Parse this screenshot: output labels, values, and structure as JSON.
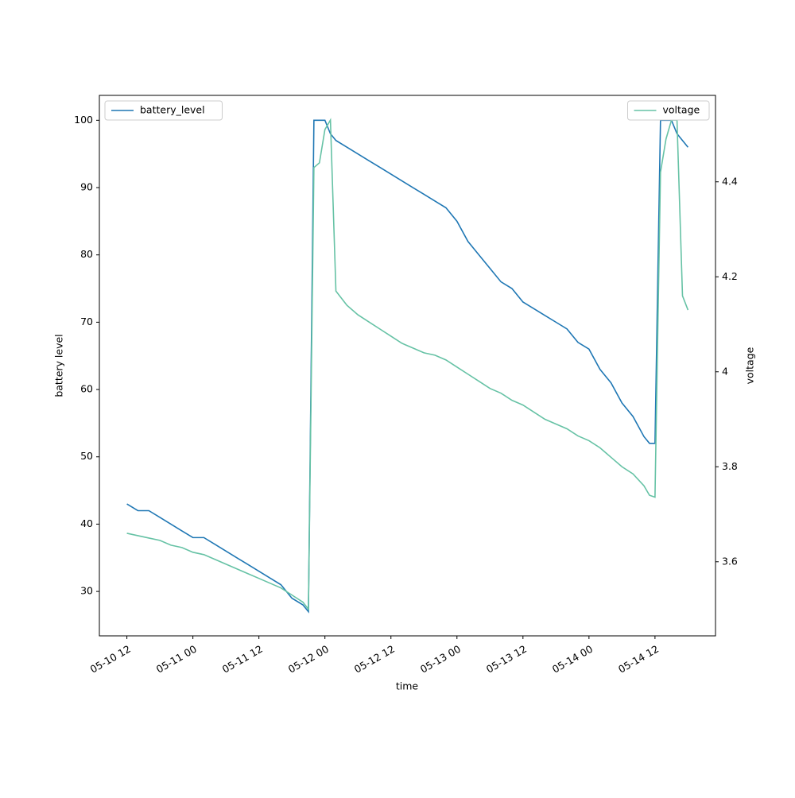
{
  "chart_data": {
    "type": "line",
    "x_label": "time",
    "y_label": "battery level",
    "y2_label": "voltage",
    "x": [
      "05-10 12",
      "05-10 14",
      "05-10 16",
      "05-10 18",
      "05-10 20",
      "05-10 22",
      "05-11 00",
      "05-11 02",
      "05-11 04",
      "05-11 06",
      "05-11 08",
      "05-11 10",
      "05-11 12",
      "05-11 14",
      "05-11 16",
      "05-11 18",
      "05-11 20",
      "05-11 21",
      "05-11 22",
      "05-11 23",
      "05-12 00",
      "05-12 01",
      "05-12 02",
      "05-12 04",
      "05-12 06",
      "05-12 08",
      "05-12 10",
      "05-12 12",
      "05-12 14",
      "05-12 16",
      "05-12 18",
      "05-12 20",
      "05-12 22",
      "05-13 00",
      "05-13 02",
      "05-13 04",
      "05-13 06",
      "05-13 08",
      "05-13 10",
      "05-13 12",
      "05-13 14",
      "05-13 16",
      "05-13 18",
      "05-13 20",
      "05-13 22",
      "05-14 00",
      "05-14 02",
      "05-14 04",
      "05-14 06",
      "05-14 08",
      "05-14 10",
      "05-14 11",
      "05-14 12",
      "05-14 13",
      "05-14 14",
      "05-14 15",
      "05-14 16",
      "05-14 17",
      "05-14 18"
    ],
    "series": [
      {
        "name": "battery_level",
        "color": "#1f77b4",
        "legend": "upper left",
        "values": [
          43,
          42,
          42,
          41,
          40,
          39,
          38,
          38,
          37,
          36,
          35,
          34,
          33,
          32,
          31,
          29,
          28,
          27,
          100,
          100,
          100,
          98,
          97,
          96,
          95,
          94,
          93,
          92,
          91,
          90,
          89,
          88,
          87,
          85,
          82,
          80,
          78,
          76,
          75,
          73,
          72,
          71,
          70,
          69,
          67,
          66,
          63,
          61,
          58,
          56,
          53,
          52,
          52,
          100,
          100,
          100,
          98,
          97,
          96
        ]
      },
      {
        "name": "voltage",
        "color": "#66c2a5",
        "axis": "y2",
        "legend": "upper right",
        "values": [
          3.66,
          3.655,
          3.65,
          3.645,
          3.635,
          3.63,
          3.62,
          3.615,
          3.605,
          3.595,
          3.585,
          3.575,
          3.565,
          3.555,
          3.545,
          3.53,
          3.515,
          3.5,
          4.43,
          4.44,
          4.51,
          4.53,
          4.17,
          4.14,
          4.12,
          4.105,
          4.09,
          4.075,
          4.06,
          4.05,
          4.04,
          4.035,
          4.025,
          4.01,
          3.995,
          3.98,
          3.965,
          3.955,
          3.94,
          3.93,
          3.915,
          3.9,
          3.89,
          3.88,
          3.865,
          3.855,
          3.84,
          3.82,
          3.8,
          3.785,
          3.76,
          3.74,
          3.736,
          4.42,
          4.49,
          4.53,
          4.53,
          4.16,
          4.13
        ]
      }
    ],
    "xlim": [
      "05-10 07",
      "05-14 23"
    ],
    "xticks": [
      "05-10 12",
      "05-11 00",
      "05-11 12",
      "05-12 00",
      "05-12 12",
      "05-13 00",
      "05-13 12",
      "05-14 00",
      "05-14 12"
    ],
    "ylim": [
      23.4,
      103.7
    ],
    "yticks": [
      30,
      40,
      50,
      60,
      70,
      80,
      90,
      100
    ],
    "y2lim": [
      3.444,
      4.582
    ],
    "y2ticks": [
      3.6,
      3.8,
      4.0,
      4.2,
      4.4
    ]
  }
}
